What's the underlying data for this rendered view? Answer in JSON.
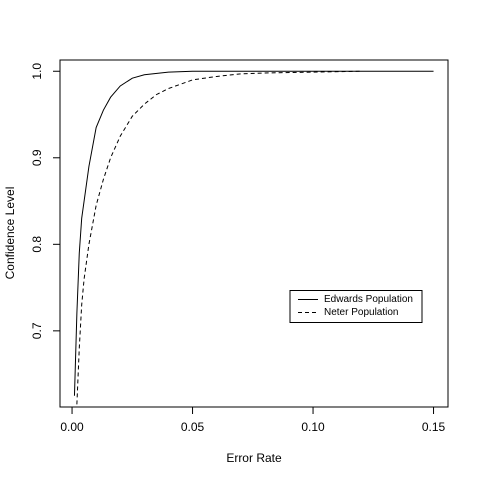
{
  "chart_data": {
    "type": "line",
    "x_label": "Error Rate",
    "y_label": "Confidence Level",
    "xlim": [
      -0.005,
      0.156
    ],
    "ylim": [
      0.612,
      1.013
    ],
    "xticks": [
      {
        "value": 0,
        "label": "0.00"
      },
      0.05,
      {
        "value": 0.1,
        "label": "0.10"
      },
      0.15
    ],
    "yticks": [
      0.7,
      0.8,
      0.9,
      {
        "value": 1,
        "label": "1.0"
      }
    ],
    "legend": "right",
    "series": [
      {
        "name": "Edwards Population",
        "color": "#000000",
        "line_style": "solid",
        "x": [
          0.001,
          0.002,
          0.003,
          0.004,
          0.005,
          0.007,
          0.01,
          0.013,
          0.016,
          0.02,
          0.025,
          0.03,
          0.04,
          0.05,
          0.06,
          0.08,
          0.1,
          0.15
        ],
        "values": [
          0.625,
          0.72,
          0.79,
          0.83,
          0.85,
          0.89,
          0.935,
          0.955,
          0.97,
          0.983,
          0.992,
          0.996,
          0.999,
          1,
          1,
          1,
          1,
          1
        ]
      },
      {
        "name": "Neter Population",
        "color": "#000000",
        "line_style": "dashed",
        "x": [
          0.002,
          0.003,
          0.004,
          0.005,
          0.007,
          0.01,
          0.013,
          0.016,
          0.02,
          0.025,
          0.03,
          0.035,
          0.04,
          0.05,
          0.06,
          0.07,
          0.08,
          0.1,
          0.12
        ],
        "values": [
          0.615,
          0.68,
          0.73,
          0.76,
          0.8,
          0.845,
          0.875,
          0.9,
          0.925,
          0.948,
          0.962,
          0.973,
          0.98,
          0.99,
          0.994,
          0.997,
          0.998,
          0.999,
          1
        ]
      }
    ]
  }
}
